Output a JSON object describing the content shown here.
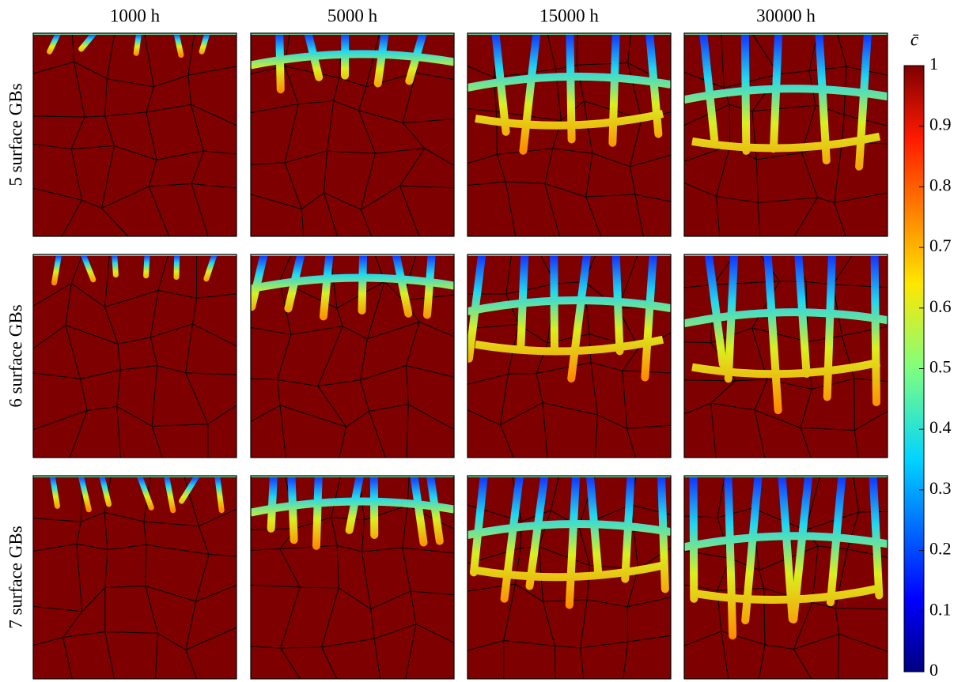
{
  "columns": [
    "1000 h",
    "5000 h",
    "15000 h",
    "30000 h"
  ],
  "rows": [
    "5 surface GBs",
    "6 surface GBs",
    "7 surface GBs"
  ],
  "colorbar": {
    "label": "c̄",
    "ticks": [
      "0",
      "0.1",
      "0.2",
      "0.3",
      "0.4",
      "0.5",
      "0.6",
      "0.7",
      "0.8",
      "0.9",
      "1"
    ]
  }
}
